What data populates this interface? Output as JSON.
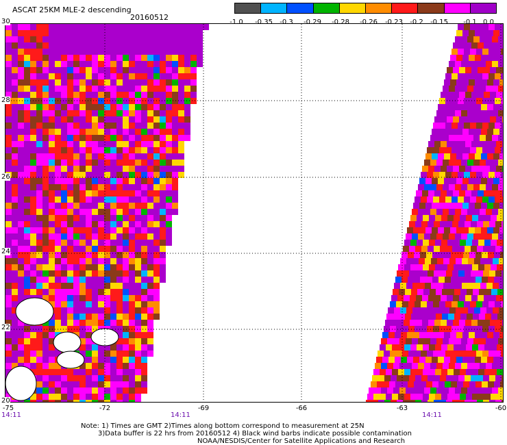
{
  "header": {
    "title": "ASCAT 25KM MLE-2 descending",
    "date": "20160512"
  },
  "colorbar": {
    "ticks": [
      "-1.0",
      "-0.35",
      "-0.3",
      "-0.29",
      "-0.28",
      "-0.26",
      "-0.23",
      "-0.2",
      "-0.15",
      "-0.1",
      "0.0"
    ],
    "colors": [
      "#505050",
      "#00b4ff",
      "#0050ff",
      "#00b400",
      "#ffd700",
      "#ff8c00",
      "#ff1a1a",
      "#8b3a1a",
      "#ff00ff",
      "#a000c8"
    ]
  },
  "map": {
    "lat_labels": [
      "30",
      "28",
      "26",
      "24",
      "22",
      "20"
    ],
    "lon_labels": [
      "-75",
      "-72",
      "-69",
      "-66",
      "-63",
      "-60"
    ],
    "time_labels": [
      "14:11",
      "14:11",
      "14:11"
    ],
    "background_color": "#aa00cc",
    "swath_colors": [
      "#aa00cc",
      "#ff00ff",
      "#ff1a1a",
      "#8b3a1a",
      "#ffd700",
      "#ff8c00",
      "#00b400",
      "#00b4ff",
      "#0050ff"
    ]
  },
  "notes": {
    "line1": "Note: 1) Times are GMT 2)Times along bottom correspond to measurement at 25N",
    "line2": "3)Data buffer is 22 hrs from 20160512 4) Black wind barbs indicate possible contamination",
    "line3": "NOAA/NESDIS/Center for Satellite Applications and Research"
  }
}
